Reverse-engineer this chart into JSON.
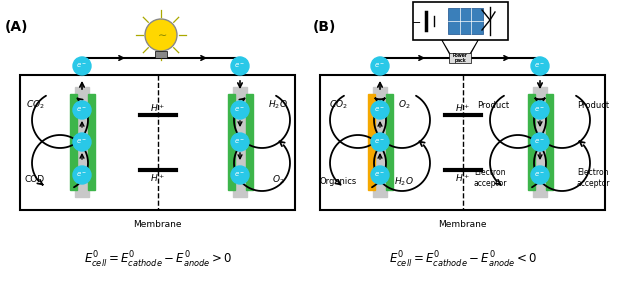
{
  "bg_color": "#ffffff",
  "panel_A_label": "(A)",
  "panel_B_label": "(B)",
  "membrane_label": "Membrane",
  "electron_color": "#29c8e8",
  "anode_green_color": "#3db54a",
  "cathode_gray_color": "#c8c8c8",
  "yellow_color": "#f5a800",
  "eq_A": "$E^0_{cell} = E^0_{cathode} - E^0_{anode} > 0$",
  "eq_B": "$E^0_{cell} = E^0_{cathode} - E^0_{anode} < 0$"
}
